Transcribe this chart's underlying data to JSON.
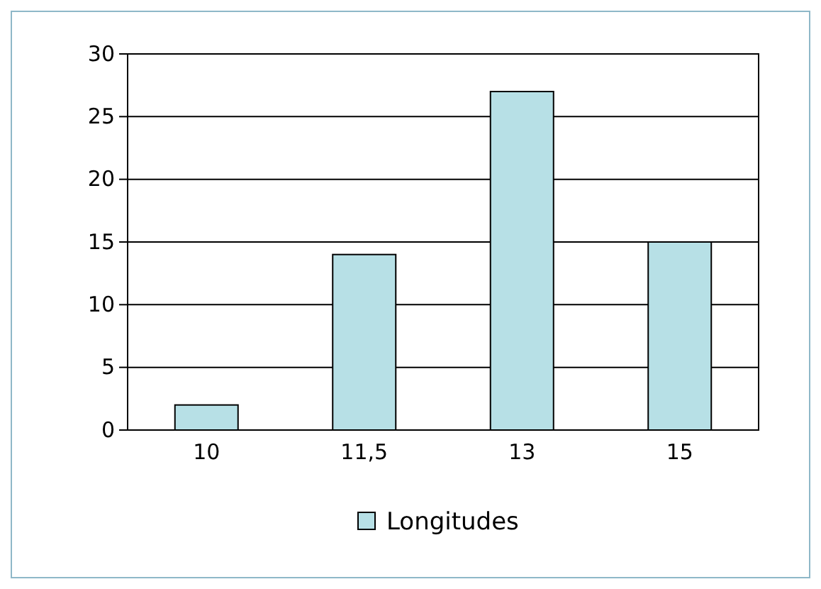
{
  "chart_data": {
    "type": "bar",
    "categories": [
      "10",
      "11,5",
      "13",
      "15"
    ],
    "series": [
      {
        "name": "Longitudes",
        "color": "#b7e0e6",
        "values": [
          2,
          14,
          27,
          15
        ]
      }
    ],
    "ylim": [
      0,
      30
    ],
    "yticks": [
      0,
      5,
      10,
      15,
      20,
      25,
      30
    ],
    "grid": "y",
    "legend": "bottom"
  }
}
